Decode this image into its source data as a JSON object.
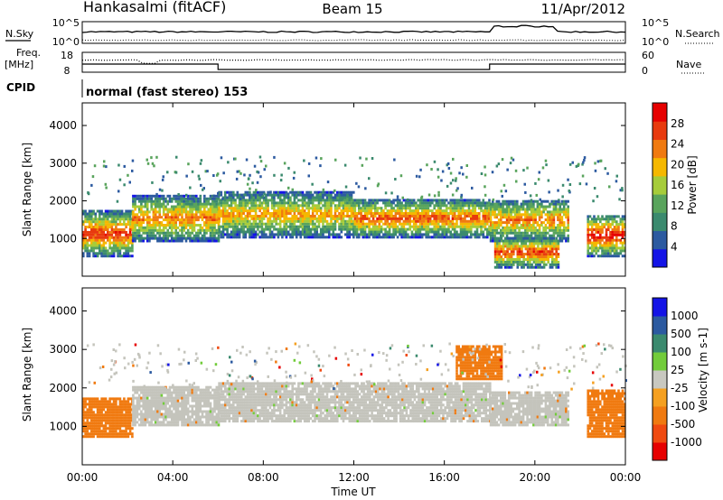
{
  "header": {
    "station": "Hankasalmi (fitACF)",
    "beam": "Beam 15",
    "date": "11/Apr/2012"
  },
  "strips": {
    "nsky_label": "N.Sky",
    "nsky_ticks": [
      "10^5",
      "10^0"
    ],
    "nsearch_label": "N.Search",
    "nsearch_ticks": [
      "10^5",
      "10^0"
    ],
    "freq_label": "Freq.",
    "freq_unit": "[MHz]",
    "freq_ticks": [
      "18",
      "8"
    ],
    "nave_label": "Nave",
    "nave_ticks": [
      "60",
      "0"
    ],
    "cpid_label": "CPID",
    "cpid_text": "normal (fast stereo) 153"
  },
  "colors": {
    "power": [
      "#1414e6",
      "#2c5aa0",
      "#3b8a6e",
      "#59a45c",
      "#a6cc3a",
      "#f5b800",
      "#f07a10",
      "#e83a0e",
      "#e60000"
    ],
    "velocity": [
      "#e60000",
      "#f04a10",
      "#f07a10",
      "#f5a020",
      "#c8c8c0",
      "#72cc3a",
      "#3b8a6e",
      "#2c5aa0",
      "#1414e6"
    ],
    "ground_scatter": "#c4c4bc"
  },
  "chart_data": [
    {
      "type": "heatmap",
      "name": "power-panel",
      "ylabel": "Slant Range [km]",
      "ylim": [
        0,
        4600
      ],
      "yticks": [
        1000,
        2000,
        3000,
        4000
      ],
      "xlim": [
        0,
        24
      ],
      "colorbar": {
        "label": "Power [dB]",
        "ticks": [
          "4",
          "8",
          "12",
          "16",
          "20",
          "24",
          "28"
        ],
        "range": [
          0,
          32
        ]
      },
      "echo_bands": [
        {
          "t0": 0.0,
          "t1": 2.2,
          "r0": 700,
          "r1": 1500,
          "level": 28
        },
        {
          "t0": 2.2,
          "t1": 6.0,
          "r0": 1100,
          "r1": 1900,
          "level": 24
        },
        {
          "t0": 6.0,
          "t1": 12.0,
          "r0": 1200,
          "r1": 2000,
          "level": 22
        },
        {
          "t0": 12.0,
          "t1": 18.0,
          "r0": 1200,
          "r1": 1800,
          "level": 26
        },
        {
          "t0": 18.0,
          "t1": 21.5,
          "r0": 1100,
          "r1": 1800,
          "level": 24
        },
        {
          "t0": 18.2,
          "t1": 21.0,
          "r0": 400,
          "r1": 800,
          "level": 28
        },
        {
          "t0": 22.3,
          "t1": 24.0,
          "r0": 700,
          "r1": 1400,
          "level": 30
        }
      ]
    },
    {
      "type": "heatmap",
      "name": "velocity-panel",
      "ylabel": "Slant Range [km]",
      "ylim": [
        0,
        4600
      ],
      "yticks": [
        1000,
        2000,
        3000,
        4000
      ],
      "xlim": [
        0,
        24
      ],
      "xticks": [
        "00:00",
        "04:00",
        "08:00",
        "12:00",
        "16:00",
        "20:00",
        "00:00"
      ],
      "xlabel": "Time UT",
      "colorbar": {
        "label": "Velocity [m s-1]",
        "ticks": [
          "1000",
          "500",
          "100",
          "25",
          "-25",
          "-100",
          "-500",
          "-1000"
        ]
      },
      "echo_bands": [
        {
          "t0": 0.0,
          "t1": 2.2,
          "r0": 800,
          "r1": 1600,
          "velocity": -300
        },
        {
          "t0": 2.2,
          "t1": 6.0,
          "r0": 1100,
          "r1": 1900,
          "velocity": 0
        },
        {
          "t0": 6.0,
          "t1": 18.0,
          "r0": 1200,
          "r1": 2000,
          "velocity": 0
        },
        {
          "t0": 18.0,
          "t1": 21.5,
          "r0": 1100,
          "r1": 1800,
          "velocity": 0
        },
        {
          "t0": 16.5,
          "t1": 18.5,
          "r0": 2300,
          "r1": 3000,
          "velocity": -300
        },
        {
          "t0": 22.3,
          "t1": 24.0,
          "r0": 800,
          "r1": 1800,
          "velocity": -300
        }
      ]
    }
  ]
}
